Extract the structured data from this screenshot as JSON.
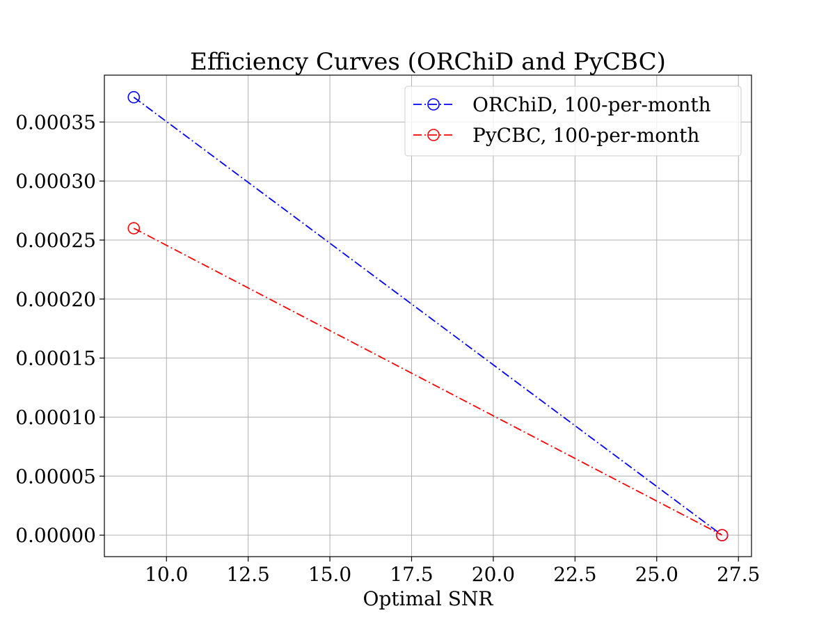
{
  "chart_data": {
    "type": "line",
    "title": "Efficiency Curves (ORChiD and PyCBC)",
    "xlabel": "Optimal SNR",
    "ylabel": "",
    "xlim": [
      8.1,
      27.9
    ],
    "ylim": [
      -1.82e-05,
      0.0003897
    ],
    "x_ticks": [
      10.0,
      12.5,
      15.0,
      17.5,
      20.0,
      22.5,
      25.0,
      27.5
    ],
    "x_tick_labels": [
      "10.0",
      "12.5",
      "15.0",
      "17.5",
      "20.0",
      "22.5",
      "25.0",
      "27.5"
    ],
    "y_ticks": [
      0.0,
      5e-05,
      0.0001,
      0.00015,
      0.0002,
      0.00025,
      0.0003,
      0.00035
    ],
    "y_tick_labels": [
      "0.00000",
      "0.00005",
      "0.00010",
      "0.00015",
      "0.00020",
      "0.00025",
      "0.00030",
      "0.00035"
    ],
    "grid": true,
    "legend_position": "top-right",
    "series": [
      {
        "name": "ORChiD, 100-per-month",
        "color": "#0000ff",
        "linestyle": "dashdot",
        "marker": "circle",
        "x": [
          9.0,
          27.0
        ],
        "y": [
          0.000371,
          0.0
        ]
      },
      {
        "name": "PyCBC, 100-per-month",
        "color": "#ff0000",
        "linestyle": "dashdot",
        "marker": "circle",
        "x": [
          9.0,
          27.0
        ],
        "y": [
          0.00026,
          0.0
        ]
      }
    ]
  }
}
